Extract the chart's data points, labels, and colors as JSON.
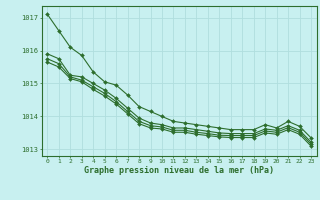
{
  "background_color": "#c8f0f0",
  "grid_color": "#b0dede",
  "line_color": "#2d6e2d",
  "title": "Graphe pression niveau de la mer (hPa)",
  "xlim": [
    -0.5,
    23.5
  ],
  "ylim": [
    1012.8,
    1017.35
  ],
  "yticks": [
    1013,
    1014,
    1015,
    1016,
    1017
  ],
  "xticks": [
    0,
    1,
    2,
    3,
    4,
    5,
    6,
    7,
    8,
    9,
    10,
    11,
    12,
    13,
    14,
    15,
    16,
    17,
    18,
    19,
    20,
    21,
    22,
    23
  ],
  "series": [
    [
      1017.1,
      1016.6,
      1016.1,
      1015.85,
      1015.35,
      1015.05,
      1014.95,
      1014.65,
      1014.3,
      1014.15,
      1014.0,
      1013.85,
      1013.8,
      1013.75,
      1013.7,
      1013.65,
      1013.6,
      1013.6,
      1013.6,
      1013.75,
      1013.65,
      1013.85,
      1013.7,
      1013.35
    ],
    [
      1015.9,
      1015.75,
      1015.25,
      1015.2,
      1015.0,
      1014.8,
      1014.55,
      1014.25,
      1013.95,
      1013.8,
      1013.75,
      1013.65,
      1013.65,
      1013.6,
      1013.55,
      1013.5,
      1013.48,
      1013.48,
      1013.48,
      1013.62,
      1013.58,
      1013.72,
      1013.58,
      1013.22
    ],
    [
      1015.75,
      1015.6,
      1015.2,
      1015.1,
      1014.9,
      1014.7,
      1014.45,
      1014.15,
      1013.85,
      1013.72,
      1013.68,
      1013.58,
      1013.58,
      1013.52,
      1013.48,
      1013.43,
      1013.42,
      1013.42,
      1013.42,
      1013.56,
      1013.52,
      1013.66,
      1013.52,
      1013.16
    ],
    [
      1015.65,
      1015.5,
      1015.15,
      1015.05,
      1014.82,
      1014.62,
      1014.38,
      1014.08,
      1013.78,
      1013.65,
      1013.62,
      1013.52,
      1013.52,
      1013.46,
      1013.42,
      1013.38,
      1013.36,
      1013.36,
      1013.36,
      1013.5,
      1013.46,
      1013.6,
      1013.46,
      1013.1
    ]
  ]
}
